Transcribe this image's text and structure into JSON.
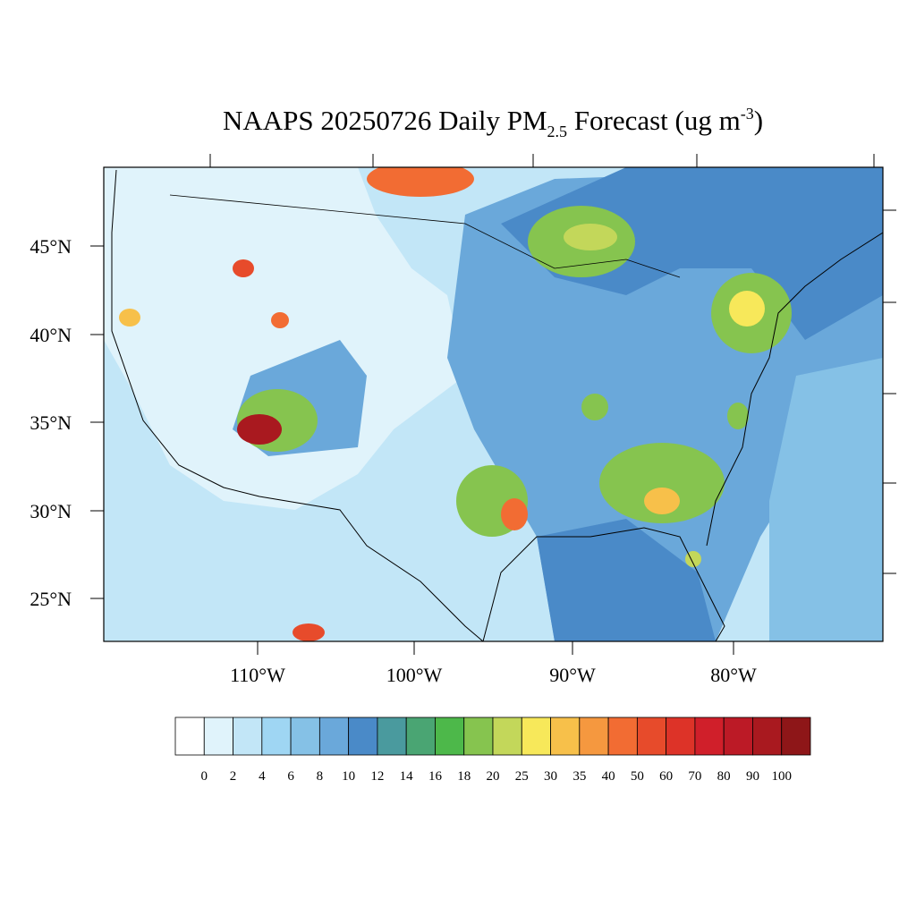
{
  "title": {
    "main": "NAAPS 20250726 Daily PM",
    "subscript": "2.5",
    "middle": " Forecast (ug m",
    "superscript": "-3",
    "end": ")"
  },
  "lat_labels": [
    "45°N",
    "40°N",
    "35°N",
    "30°N",
    "25°N"
  ],
  "lon_labels": [
    "110°W",
    "100°W",
    "90°W",
    "80°W"
  ],
  "colorbar": {
    "labels": [
      "0",
      "2",
      "4",
      "6",
      "8",
      "10",
      "12",
      "14",
      "16",
      "18",
      "20",
      "25",
      "30",
      "35",
      "40",
      "50",
      "60",
      "70",
      "80",
      "90",
      "100"
    ],
    "colors": [
      "#ffffff",
      "#e0f3fb",
      "#c2e6f7",
      "#9fd6f3",
      "#85c1e6",
      "#6aa8da",
      "#4a8ac8",
      "#4a9a9e",
      "#4aa573",
      "#4db84a",
      "#86c44f",
      "#c3d75a",
      "#f7e85a",
      "#f7c04a",
      "#f5983f",
      "#f26c33",
      "#e74b2b",
      "#dd3328",
      "#d01f2a",
      "#bc1a26",
      "#a9191f",
      "#8e1618"
    ]
  }
}
